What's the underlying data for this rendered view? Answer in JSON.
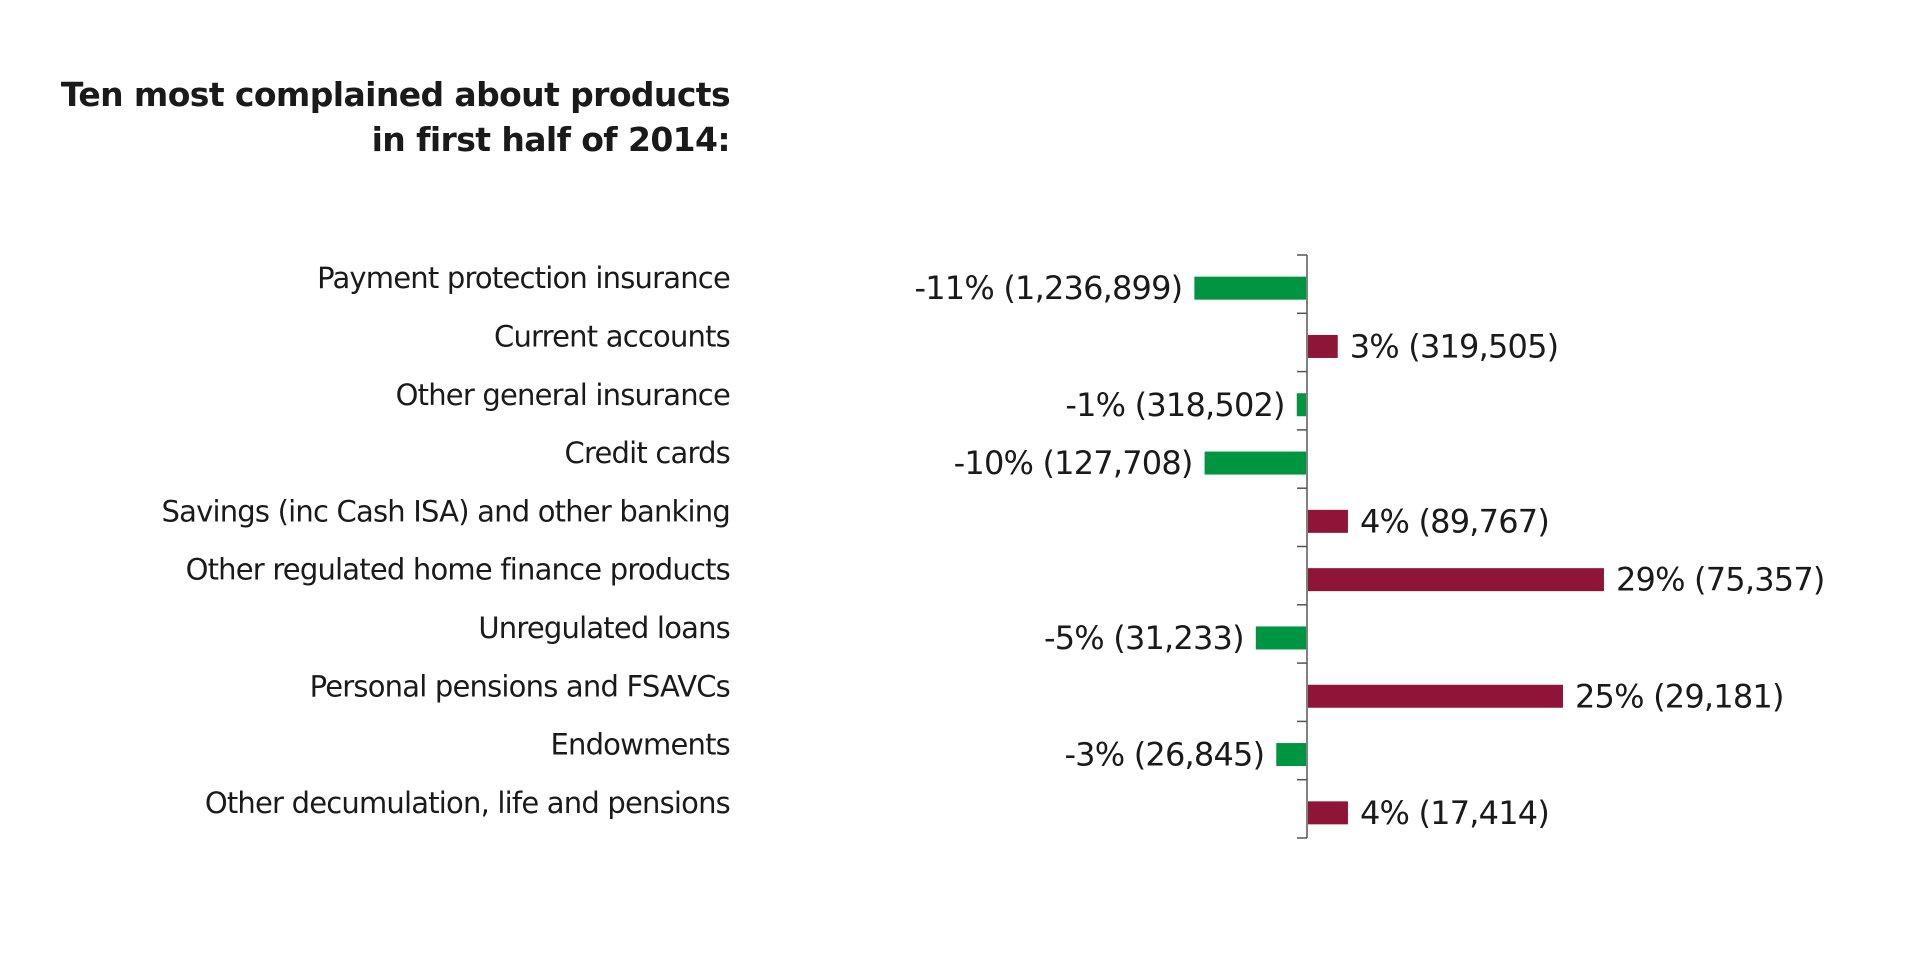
{
  "chart_data": {
    "type": "bar",
    "orientation": "horizontal",
    "title": "Ten most complained about products in first half of 2014:",
    "title_lines": [
      "Ten most complained about products",
      "in first half of 2014:"
    ],
    "xlabel": "",
    "ylabel": "",
    "grid": false,
    "legend": "none",
    "units": "% change (complaint count)",
    "xlim": [
      -15,
      48
    ],
    "colors": {
      "negative": "#009540",
      "positive": "#8e1537",
      "axis": "#808080",
      "text": "#1a1a1a"
    },
    "categories": [
      "Payment protection insurance",
      "Current accounts",
      "Other general insurance",
      "Credit cards",
      "Savings (inc Cash ISA) and other banking",
      "Other regulated home finance products",
      "Unregulated loans",
      "Personal pensions and FSAVCs",
      "Endowments",
      "Other decumulation, life and pensions"
    ],
    "values": [
      -11,
      3,
      -1,
      -10,
      4,
      29,
      -5,
      25,
      -3,
      4
    ],
    "counts": [
      1236899,
      319505,
      318502,
      127708,
      89767,
      75357,
      31233,
      29181,
      26845,
      17414
    ],
    "data_labels": [
      "-11% (1,236,899)",
      "3% (319,505)",
      "-1% (318,502)",
      "-10% (127,708)",
      "4% (89,767)",
      "29% (75,357)",
      "-5% (31,233)",
      "25% (29,181)",
      "-3% (26,845)",
      "4% (17,414)"
    ]
  }
}
